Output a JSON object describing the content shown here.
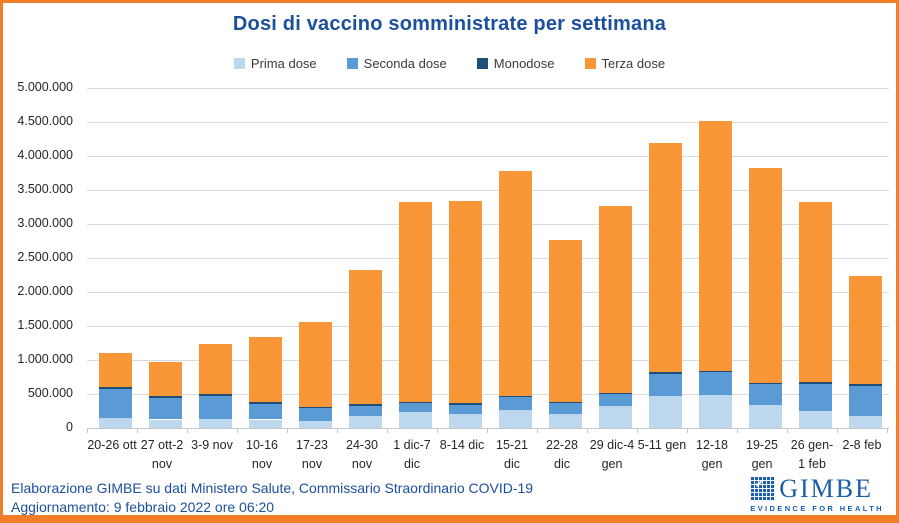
{
  "title": "Dosi di vaccino somministrate per settimana",
  "footer": {
    "line1": "Elaborazione GIMBE su dati Ministero Salute, Commissario Straordinario COVID-19",
    "line2": "Aggiornamento: 9 febbraio 2022 ore 06:20"
  },
  "logo": {
    "name": "GIMBE",
    "tagline": "EVIDENCE FOR HEALTH",
    "check_glyph": "✔"
  },
  "colors": {
    "border_orange": "#F07E26",
    "title_blue": "#1C4F9C",
    "logo_blue": "#1B5FAA",
    "grid": "#DADADA",
    "axis_text": "#262626"
  },
  "chart_data": {
    "type": "bar",
    "stacked": true,
    "grid": true,
    "legend_position": "top",
    "title": "Dosi di vaccino somministrate per settimana",
    "xlabel": "",
    "ylabel": "",
    "ylim": [
      0,
      5000000
    ],
    "ytick_step": 500000,
    "ytick_labels": [
      "0",
      "500.000",
      "1.000.000",
      "1.500.000",
      "2.000.000",
      "2.500.000",
      "3.000.000",
      "3.500.000",
      "4.000.000",
      "4.500.000",
      "5.000.000"
    ],
    "categories": [
      "20-26 ott",
      "27 ott-2 nov",
      "3-9 nov",
      "10-16 nov",
      "17-23 nov",
      "24-30 nov",
      "1 dic-7 dic",
      "8-14 dic",
      "15-21 dic",
      "22-28 dic",
      "29 dic-4 gen",
      "5-11 gen",
      "12-18 gen",
      "19-25 gen",
      "26 gen- 1 feb",
      "2-8 feb"
    ],
    "series": [
      {
        "name": "Prima dose",
        "color": "#BDD7EE",
        "values": [
          150000,
          125000,
          135000,
          125000,
          110000,
          170000,
          230000,
          205000,
          265000,
          205000,
          325000,
          470000,
          490000,
          340000,
          250000,
          180000
        ]
      },
      {
        "name": "Seconda dose",
        "color": "#5B9BD5",
        "values": [
          425000,
          320000,
          335000,
          235000,
          185000,
          160000,
          135000,
          130000,
          190000,
          160000,
          170000,
          330000,
          330000,
          305000,
          400000,
          440000
        ]
      },
      {
        "name": "Monodose",
        "color": "#1F4E79",
        "values": [
          30000,
          25000,
          30000,
          25000,
          20000,
          25000,
          20000,
          30000,
          20000,
          15000,
          20000,
          25000,
          25000,
          20000,
          25000,
          20000
        ]
      },
      {
        "name": "Terza dose",
        "color": "#F99638",
        "values": [
          495000,
          500000,
          740000,
          955000,
          1240000,
          1975000,
          2935000,
          2970000,
          3305000,
          2380000,
          2745000,
          3365000,
          3675000,
          3155000,
          2645000,
          1590000
        ]
      }
    ],
    "totals": [
      1100000,
      970000,
      1240000,
      1340000,
      1555000,
      2330000,
      3320000,
      3335000,
      3780000,
      2760000,
      3260000,
      4190000,
      4520000,
      3820000,
      3320000,
      2230000
    ]
  }
}
